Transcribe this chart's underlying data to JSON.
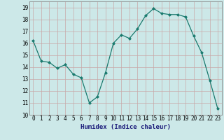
{
  "x": [
    0,
    1,
    2,
    3,
    4,
    5,
    6,
    7,
    8,
    9,
    10,
    11,
    12,
    13,
    14,
    15,
    16,
    17,
    18,
    19,
    20,
    21,
    22,
    23
  ],
  "y": [
    16.2,
    14.5,
    14.4,
    13.9,
    14.2,
    13.4,
    13.1,
    11.0,
    11.5,
    13.5,
    16.0,
    16.7,
    16.4,
    17.2,
    18.3,
    18.9,
    18.5,
    18.4,
    18.4,
    18.2,
    16.6,
    15.2,
    12.9,
    10.5
  ],
  "xlabel": "Humidex (Indice chaleur)",
  "xlim": [
    -0.5,
    23.5
  ],
  "ylim": [
    10,
    19.5
  ],
  "yticks": [
    10,
    11,
    12,
    13,
    14,
    15,
    16,
    17,
    18,
    19
  ],
  "xticks": [
    0,
    1,
    2,
    3,
    4,
    5,
    6,
    7,
    8,
    9,
    10,
    11,
    12,
    13,
    14,
    15,
    16,
    17,
    18,
    19,
    20,
    21,
    22,
    23
  ],
  "line_color": "#1a7a6e",
  "marker_color": "#1a7a6e",
  "bg_color": "#cce8e8",
  "grid_color": "#c8a8a8",
  "axis_label_fontsize": 6.5,
  "tick_fontsize": 5.5,
  "xlabel_color": "#1a1a7a",
  "xlabel_fontweight": "bold"
}
